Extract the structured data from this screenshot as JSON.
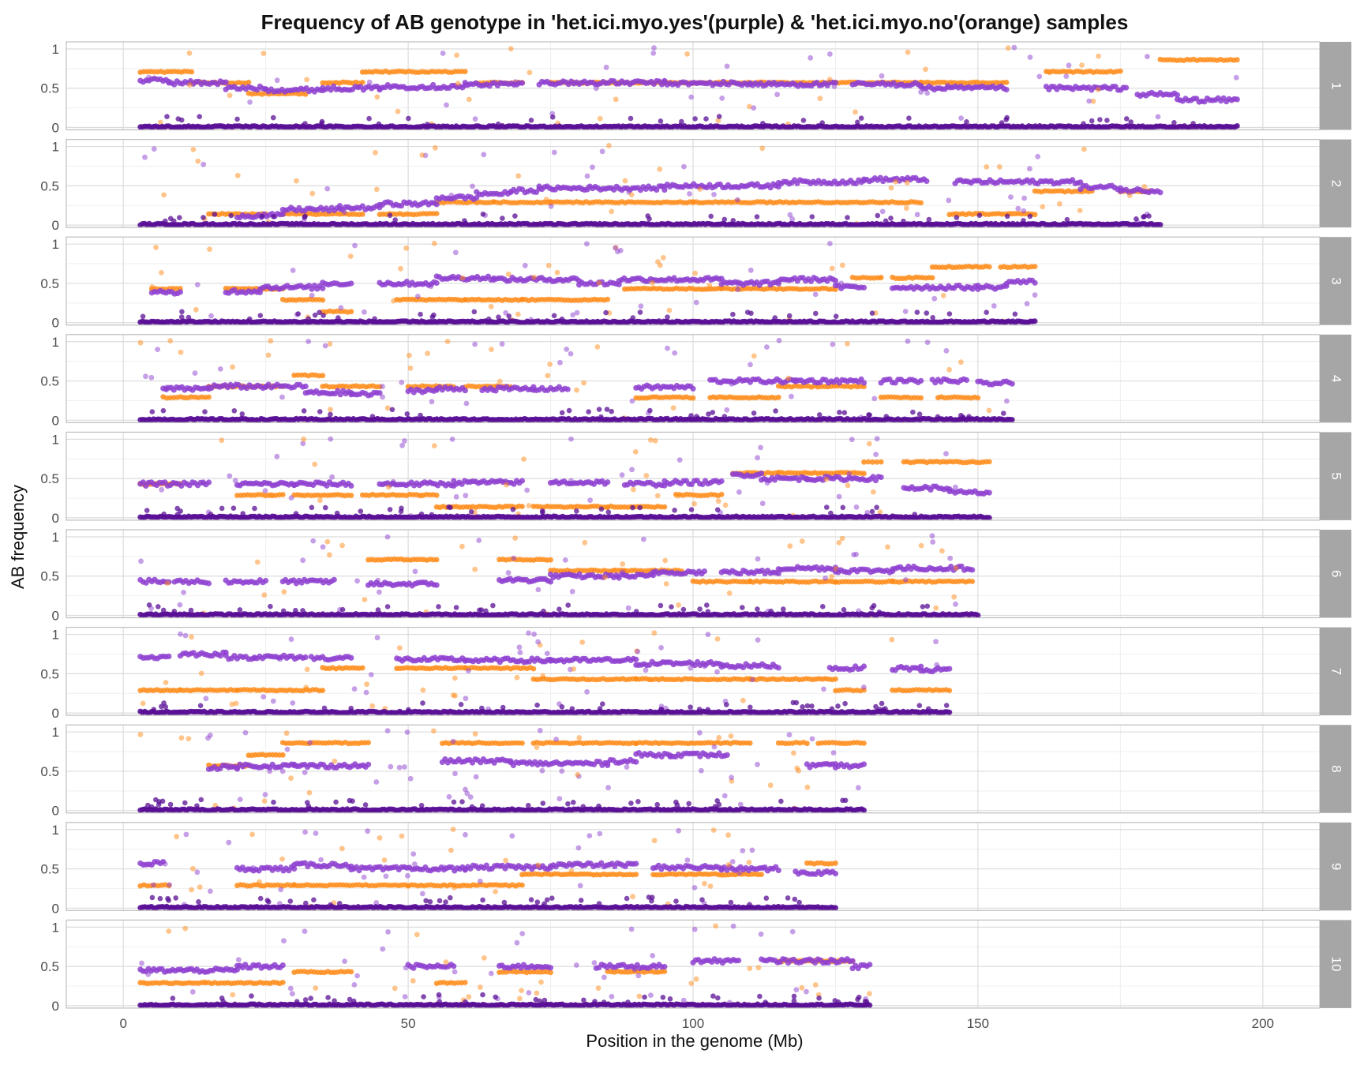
{
  "chart_data": {
    "type": "scatter",
    "title": "Frequency of AB genotype in 'het.ici.myo.yes'(purple) & 'het.ici.myo.no'(orange) samples",
    "xlabel": "Position in the genome (Mb)",
    "ylabel": "AB frequency",
    "xlim": [
      -10,
      210
    ],
    "ylim": [
      0,
      1.05
    ],
    "x_ticks": [
      0,
      50,
      100,
      150,
      200
    ],
    "x_tick_labels": [
      "0",
      "50",
      "100",
      "150",
      "200"
    ],
    "y_ticks": [
      0,
      0.5,
      1
    ],
    "y_tick_labels": [
      "0",
      "0.5",
      "1"
    ],
    "facet_strip_position": "right",
    "grid": true,
    "legend": "none",
    "colors": {
      "purple_series": "#8e3fd0",
      "purple_zero": "#5a0f96",
      "orange_series": "#ff8c1a",
      "strip_bg": "#a6a6a6",
      "strip_text": "#ffffff",
      "panel_border": "#bdbdbd",
      "grid_major": "#dcdcdc",
      "grid_minor": "#efefef"
    },
    "panels": [
      {
        "label": "1",
        "xmax": 195.5,
        "purple": [
          [
            3,
            8,
            0.6
          ],
          [
            8,
            18,
            0.57
          ],
          [
            18,
            25,
            0.5
          ],
          [
            25,
            35,
            0.48
          ],
          [
            35,
            45,
            0.5
          ],
          [
            45,
            60,
            0.52
          ],
          [
            60,
            70,
            0.55
          ],
          [
            73,
            95,
            0.57
          ],
          [
            95,
            110,
            0.56
          ],
          [
            110,
            125,
            0.55
          ],
          [
            128,
            140,
            0.55
          ],
          [
            140,
            155,
            0.5
          ],
          [
            162,
            176,
            0.5
          ],
          [
            178,
            185,
            0.42
          ],
          [
            185,
            195.5,
            0.35
          ]
        ],
        "orange": [
          [
            3,
            12,
            0.71
          ],
          [
            12,
            22,
            0.57
          ],
          [
            22,
            32,
            0.43
          ],
          [
            35,
            42,
            0.57
          ],
          [
            42,
            60,
            0.71
          ],
          [
            62,
            70,
            0.57
          ],
          [
            75,
            95,
            0.57
          ],
          [
            95,
            125,
            0.57
          ],
          [
            125,
            140,
            0.57
          ],
          [
            140,
            155,
            0.57
          ],
          [
            162,
            175,
            0.71
          ],
          [
            182,
            195.5,
            0.86
          ]
        ]
      },
      {
        "label": "2",
        "xmax": 182,
        "purple": [
          [
            20,
            28,
            0.12
          ],
          [
            28,
            38,
            0.2
          ],
          [
            38,
            45,
            0.22
          ],
          [
            45,
            55,
            0.27
          ],
          [
            55,
            62,
            0.35
          ],
          [
            62,
            68,
            0.4
          ],
          [
            68,
            73,
            0.44
          ],
          [
            73,
            95,
            0.47
          ],
          [
            95,
            115,
            0.5
          ],
          [
            115,
            130,
            0.55
          ],
          [
            130,
            141,
            0.58
          ],
          [
            146,
            168,
            0.55
          ],
          [
            168,
            175,
            0.48
          ],
          [
            175,
            182,
            0.44
          ]
        ],
        "orange": [
          [
            15,
            25,
            0.14
          ],
          [
            28,
            42,
            0.14
          ],
          [
            45,
            55,
            0.14
          ],
          [
            55,
            65,
            0.29
          ],
          [
            65,
            75,
            0.29
          ],
          [
            75,
            100,
            0.29
          ],
          [
            100,
            140,
            0.29
          ],
          [
            145,
            160,
            0.14
          ],
          [
            160,
            170,
            0.43
          ],
          [
            175,
            180,
            0.43
          ]
        ]
      },
      {
        "label": "3",
        "xmax": 160,
        "purple": [
          [
            5,
            10,
            0.38
          ],
          [
            18,
            24,
            0.4
          ],
          [
            24,
            35,
            0.45
          ],
          [
            35,
            40,
            0.5
          ],
          [
            45,
            55,
            0.5
          ],
          [
            55,
            65,
            0.57
          ],
          [
            65,
            80,
            0.55
          ],
          [
            80,
            87,
            0.5
          ],
          [
            87,
            105,
            0.55
          ],
          [
            105,
            115,
            0.5
          ],
          [
            115,
            125,
            0.55
          ],
          [
            125,
            130,
            0.45
          ],
          [
            135,
            150,
            0.45
          ],
          [
            150,
            155,
            0.45
          ],
          [
            155,
            160,
            0.52
          ]
        ],
        "orange": [
          [
            5,
            10,
            0.43
          ],
          [
            18,
            28,
            0.43
          ],
          [
            28,
            35,
            0.29
          ],
          [
            35,
            40,
            0.14
          ],
          [
            48,
            60,
            0.29
          ],
          [
            60,
            70,
            0.29
          ],
          [
            70,
            85,
            0.29
          ],
          [
            88,
            105,
            0.43
          ],
          [
            105,
            125,
            0.43
          ],
          [
            128,
            133,
            0.57
          ],
          [
            135,
            142,
            0.57
          ],
          [
            142,
            152,
            0.71
          ],
          [
            154,
            160,
            0.71
          ]
        ]
      },
      {
        "label": "4",
        "xmax": 156,
        "purple": [
          [
            7,
            15,
            0.4
          ],
          [
            15,
            25,
            0.43
          ],
          [
            25,
            32,
            0.43
          ],
          [
            32,
            40,
            0.35
          ],
          [
            40,
            45,
            0.33
          ],
          [
            50,
            55,
            0.38
          ],
          [
            55,
            60,
            0.4
          ],
          [
            63,
            72,
            0.4
          ],
          [
            72,
            78,
            0.4
          ],
          [
            90,
            100,
            0.42
          ],
          [
            103,
            118,
            0.5
          ],
          [
            118,
            130,
            0.5
          ],
          [
            133,
            140,
            0.5
          ],
          [
            142,
            148,
            0.5
          ],
          [
            150,
            156,
            0.47
          ]
        ],
        "orange": [
          [
            7,
            15,
            0.29
          ],
          [
            15,
            28,
            0.43
          ],
          [
            30,
            35,
            0.57
          ],
          [
            35,
            45,
            0.43
          ],
          [
            50,
            58,
            0.43
          ],
          [
            60,
            68,
            0.43
          ],
          [
            90,
            100,
            0.29
          ],
          [
            103,
            115,
            0.29
          ],
          [
            115,
            130,
            0.43
          ],
          [
            133,
            140,
            0.29
          ],
          [
            143,
            150,
            0.29
          ]
        ]
      },
      {
        "label": "5",
        "xmax": 152,
        "purple": [
          [
            3,
            15,
            0.43
          ],
          [
            20,
            30,
            0.43
          ],
          [
            30,
            40,
            0.43
          ],
          [
            45,
            58,
            0.43
          ],
          [
            58,
            70,
            0.45
          ],
          [
            75,
            85,
            0.45
          ],
          [
            88,
            95,
            0.43
          ],
          [
            95,
            105,
            0.45
          ],
          [
            107,
            112,
            0.55
          ],
          [
            112,
            120,
            0.5
          ],
          [
            120,
            133,
            0.5
          ],
          [
            137,
            145,
            0.38
          ],
          [
            145,
            152,
            0.32
          ]
        ],
        "orange": [
          [
            3,
            10,
            0.43
          ],
          [
            20,
            28,
            0.29
          ],
          [
            30,
            40,
            0.29
          ],
          [
            42,
            55,
            0.29
          ],
          [
            55,
            70,
            0.14
          ],
          [
            72,
            85,
            0.14
          ],
          [
            85,
            95,
            0.14
          ],
          [
            97,
            105,
            0.29
          ],
          [
            107,
            115,
            0.57
          ],
          [
            115,
            130,
            0.57
          ],
          [
            130,
            133,
            0.71
          ],
          [
            137,
            152,
            0.71
          ]
        ]
      },
      {
        "label": "6",
        "xmax": 150,
        "purple": [
          [
            3,
            8,
            0.43
          ],
          [
            9,
            15,
            0.43
          ],
          [
            18,
            25,
            0.43
          ],
          [
            28,
            37,
            0.43
          ],
          [
            43,
            55,
            0.4
          ],
          [
            66,
            75,
            0.45
          ],
          [
            75,
            93,
            0.5
          ],
          [
            93,
            102,
            0.55
          ],
          [
            105,
            115,
            0.55
          ],
          [
            115,
            125,
            0.6
          ],
          [
            125,
            135,
            0.57
          ],
          [
            135,
            149,
            0.6
          ]
        ],
        "orange": [
          [
            43,
            55,
            0.71
          ],
          [
            66,
            75,
            0.71
          ],
          [
            75,
            88,
            0.57
          ],
          [
            88,
            98,
            0.57
          ],
          [
            100,
            110,
            0.43
          ],
          [
            110,
            125,
            0.43
          ],
          [
            125,
            135,
            0.43
          ],
          [
            135,
            149,
            0.43
          ]
        ]
      },
      {
        "label": "7",
        "xmax": 145,
        "purple": [
          [
            3,
            8,
            0.71
          ],
          [
            10,
            18,
            0.75
          ],
          [
            18,
            23,
            0.71
          ],
          [
            23,
            32,
            0.71
          ],
          [
            33,
            40,
            0.7
          ],
          [
            48,
            60,
            0.68
          ],
          [
            60,
            75,
            0.67
          ],
          [
            75,
            90,
            0.67
          ],
          [
            90,
            105,
            0.63
          ],
          [
            105,
            115,
            0.6
          ],
          [
            124,
            130,
            0.57
          ],
          [
            135,
            140,
            0.57
          ],
          [
            140,
            145,
            0.55
          ]
        ],
        "orange": [
          [
            3,
            10,
            0.29
          ],
          [
            10,
            20,
            0.29
          ],
          [
            20,
            35,
            0.29
          ],
          [
            35,
            42,
            0.57
          ],
          [
            48,
            60,
            0.57
          ],
          [
            60,
            72,
            0.57
          ],
          [
            72,
            90,
            0.43
          ],
          [
            90,
            110,
            0.43
          ],
          [
            110,
            125,
            0.43
          ],
          [
            125,
            130,
            0.29
          ],
          [
            135,
            145,
            0.29
          ]
        ]
      },
      {
        "label": "8",
        "xmax": 130,
        "purple": [
          [
            15,
            20,
            0.55
          ],
          [
            20,
            30,
            0.57
          ],
          [
            30,
            43,
            0.57
          ],
          [
            56,
            68,
            0.63
          ],
          [
            68,
            85,
            0.6
          ],
          [
            85,
            90,
            0.63
          ],
          [
            90,
            96,
            0.71
          ],
          [
            96,
            106,
            0.71
          ],
          [
            120,
            125,
            0.57
          ],
          [
            125,
            130,
            0.57
          ]
        ],
        "orange": [
          [
            15,
            22,
            0.57
          ],
          [
            22,
            28,
            0.71
          ],
          [
            28,
            43,
            0.86
          ],
          [
            56,
            70,
            0.86
          ],
          [
            72,
            90,
            0.86
          ],
          [
            90,
            110,
            0.86
          ],
          [
            115,
            120,
            0.86
          ],
          [
            122,
            130,
            0.86
          ]
        ]
      },
      {
        "label": "9",
        "xmax": 125,
        "purple": [
          [
            3,
            7,
            0.57
          ],
          [
            20,
            30,
            0.5
          ],
          [
            30,
            40,
            0.55
          ],
          [
            40,
            60,
            0.5
          ],
          [
            60,
            75,
            0.52
          ],
          [
            75,
            90,
            0.55
          ],
          [
            93,
            105,
            0.52
          ],
          [
            105,
            115,
            0.5
          ],
          [
            118,
            125,
            0.45
          ]
        ],
        "orange": [
          [
            3,
            8,
            0.29
          ],
          [
            20,
            30,
            0.29
          ],
          [
            30,
            50,
            0.29
          ],
          [
            50,
            70,
            0.29
          ],
          [
            70,
            90,
            0.43
          ],
          [
            93,
            112,
            0.43
          ],
          [
            120,
            125,
            0.57
          ]
        ]
      },
      {
        "label": "10",
        "xmax": 131,
        "purple": [
          [
            3,
            20,
            0.45
          ],
          [
            20,
            28,
            0.5
          ],
          [
            50,
            58,
            0.5
          ],
          [
            66,
            75,
            0.5
          ],
          [
            83,
            95,
            0.5
          ],
          [
            100,
            108,
            0.57
          ],
          [
            112,
            128,
            0.57
          ],
          [
            128,
            131,
            0.5
          ]
        ],
        "orange": [
          [
            3,
            28,
            0.29
          ],
          [
            30,
            40,
            0.43
          ],
          [
            55,
            60,
            0.29
          ],
          [
            66,
            75,
            0.43
          ],
          [
            85,
            95,
            0.43
          ],
          [
            115,
            128,
            0.57
          ]
        ]
      }
    ]
  }
}
